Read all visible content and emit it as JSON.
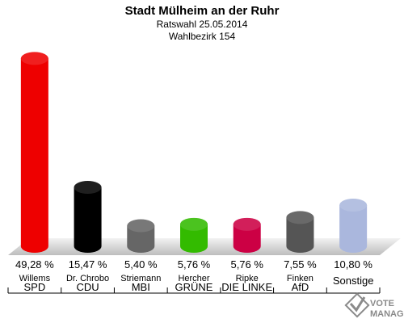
{
  "chart_data": {
    "type": "bar",
    "title": "Stadt Mülheim an der Ruhr",
    "subtitle_1": "Ratswahl 25.05.2014",
    "subtitle_2": "Wahlbezirk 154",
    "categories": [
      "SPD",
      "CDU",
      "MBI",
      "GRÜNE",
      "DIE LINKE",
      "AfD",
      "Sonstige"
    ],
    "candidates": [
      "Willems",
      "Dr. Chrobo",
      "Striemann",
      "Hercher",
      "Ripke",
      "Finken",
      ""
    ],
    "values": [
      49.28,
      15.47,
      5.4,
      5.76,
      5.76,
      7.55,
      10.8
    ],
    "value_labels": [
      "49,28 %",
      "15,47 %",
      "5,40 %",
      "5,76 %",
      "5,76 %",
      "7,55 %",
      "10,80 %"
    ],
    "colors": [
      "#ee0000",
      "#000000",
      "#666666",
      "#33bb00",
      "#cc0044",
      "#555555",
      "#aab7dd"
    ],
    "ylim": [
      0,
      50
    ]
  },
  "logo": {
    "line1": "VOTE",
    "line2": "MANAGER"
  }
}
